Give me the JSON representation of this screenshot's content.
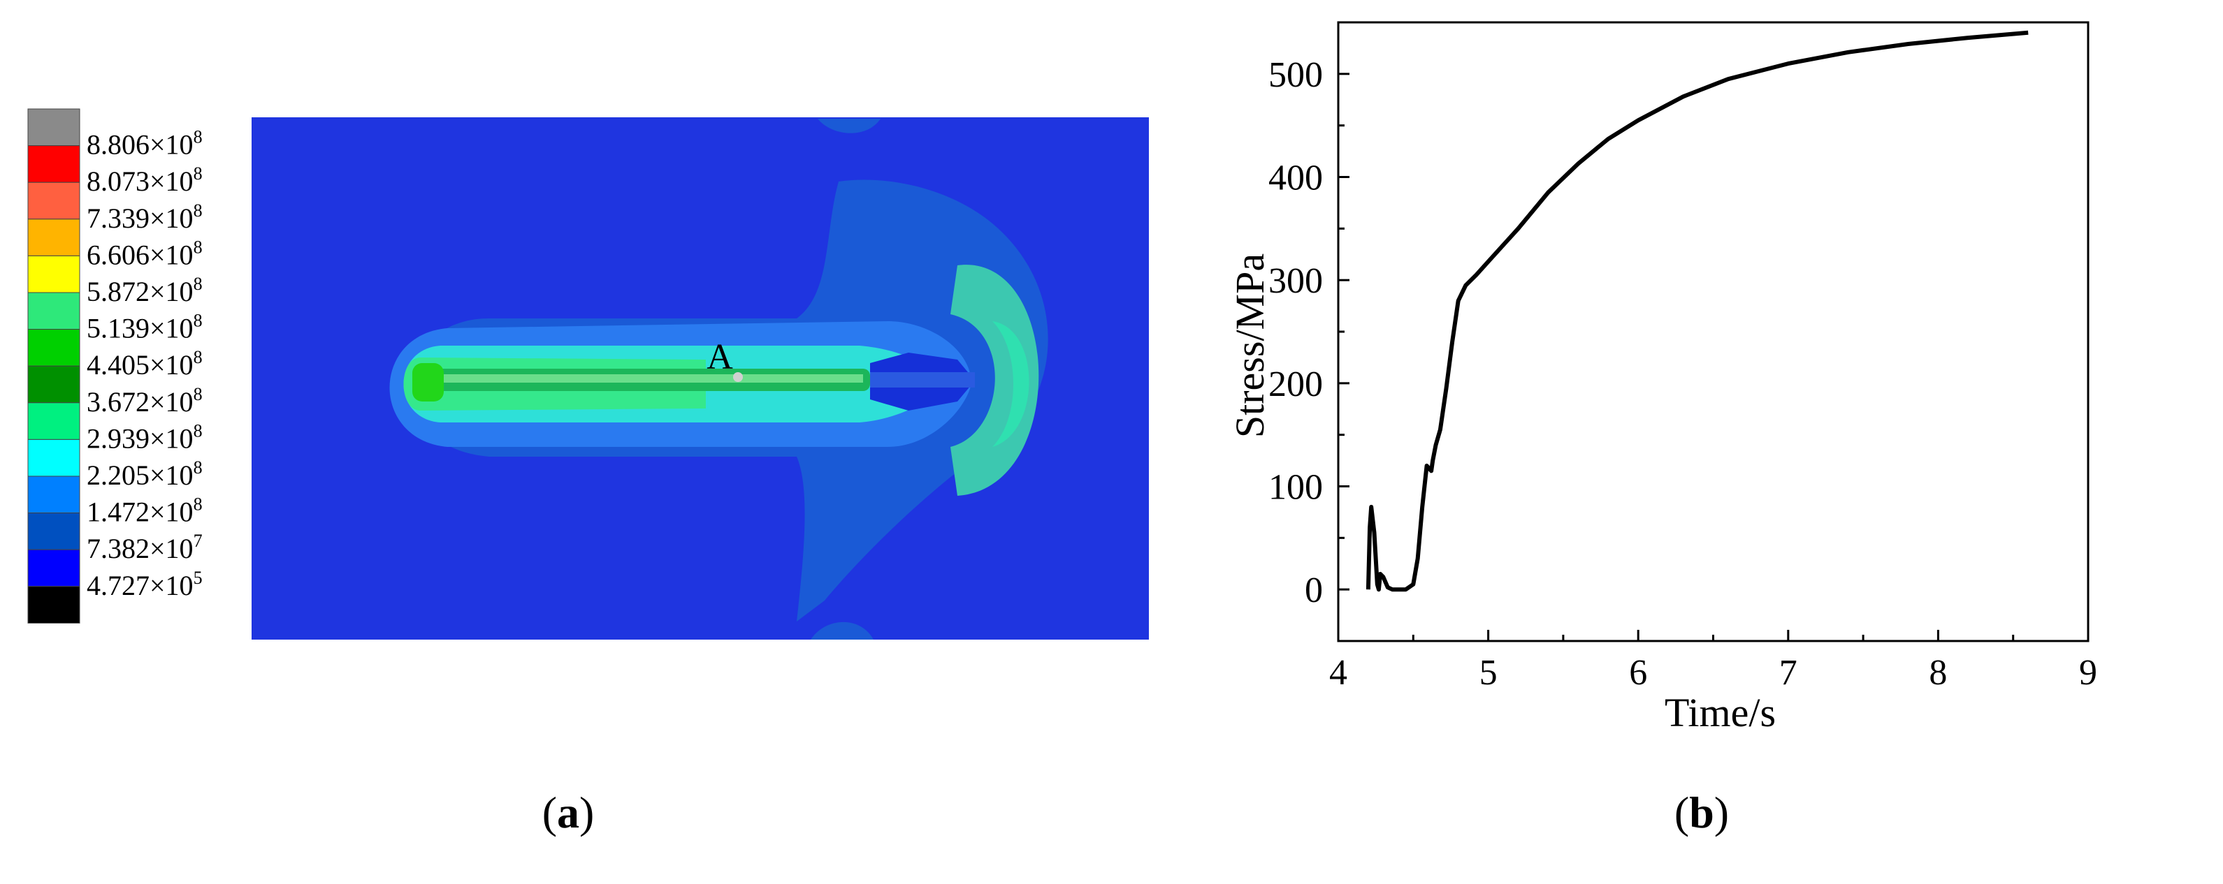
{
  "panel_a": {
    "caption_letter": "a",
    "point_label": "A",
    "legend": [
      {
        "label": "8.806×10",
        "exp": "8",
        "color": "#8a8a8a"
      },
      {
        "label": "8.073×10",
        "exp": "8",
        "color": "#ff0000"
      },
      {
        "label": "7.339×10",
        "exp": "8",
        "color": "#ff6040"
      },
      {
        "label": "6.606×10",
        "exp": "8",
        "color": "#ffb400"
      },
      {
        "label": "5.872×10",
        "exp": "8",
        "color": "#ffff00"
      },
      {
        "label": "5.139×10",
        "exp": "8",
        "color": "#2ee87a"
      },
      {
        "label": "4.405×10",
        "exp": "8",
        "color": "#00d000"
      },
      {
        "label": "3.672×10",
        "exp": "8",
        "color": "#009000"
      },
      {
        "label": "2.939×10",
        "exp": "8",
        "color": "#00f080"
      },
      {
        "label": "2.205×10",
        "exp": "8",
        "color": "#00ffff"
      },
      {
        "label": "1.472×10",
        "exp": "8",
        "color": "#0080ff"
      },
      {
        "label": "7.382×10",
        "exp": "7",
        "color": "#0050c0"
      },
      {
        "label": "4.727×10",
        "exp": "5",
        "color": "#0000ff"
      },
      {
        "label": "",
        "exp": "",
        "color": "#000000"
      }
    ]
  },
  "panel_b": {
    "caption_letter": "b"
  },
  "chart_data": {
    "type": "line",
    "xlabel": "Time/s",
    "ylabel": "Stress/MPa",
    "xlim": [
      4,
      9
    ],
    "ylim": [
      -50,
      550
    ],
    "xticks": [
      4,
      5,
      6,
      7,
      8,
      9
    ],
    "yticks": [
      0,
      100,
      200,
      300,
      400,
      500
    ],
    "series": [
      {
        "x": [
          4.2,
          4.21,
          4.22,
          4.24,
          4.26,
          4.27,
          4.28,
          4.3,
          4.33,
          4.36,
          4.4,
          4.45,
          4.5,
          4.53,
          4.56,
          4.59,
          4.62,
          4.63,
          4.65,
          4.68,
          4.72,
          4.76,
          4.8,
          4.85,
          4.92,
          5.0,
          5.2,
          5.4,
          5.6,
          5.8,
          6.0,
          6.3,
          6.6,
          7.0,
          7.4,
          7.8,
          8.2,
          8.6
        ],
        "y": [
          0,
          60,
          80,
          55,
          5,
          0,
          15,
          12,
          2,
          0,
          0,
          0,
          5,
          30,
          80,
          120,
          115,
          125,
          140,
          155,
          195,
          240,
          280,
          295,
          305,
          318,
          350,
          385,
          413,
          437,
          455,
          478,
          495,
          510,
          521,
          529,
          535,
          540
        ]
      }
    ]
  }
}
